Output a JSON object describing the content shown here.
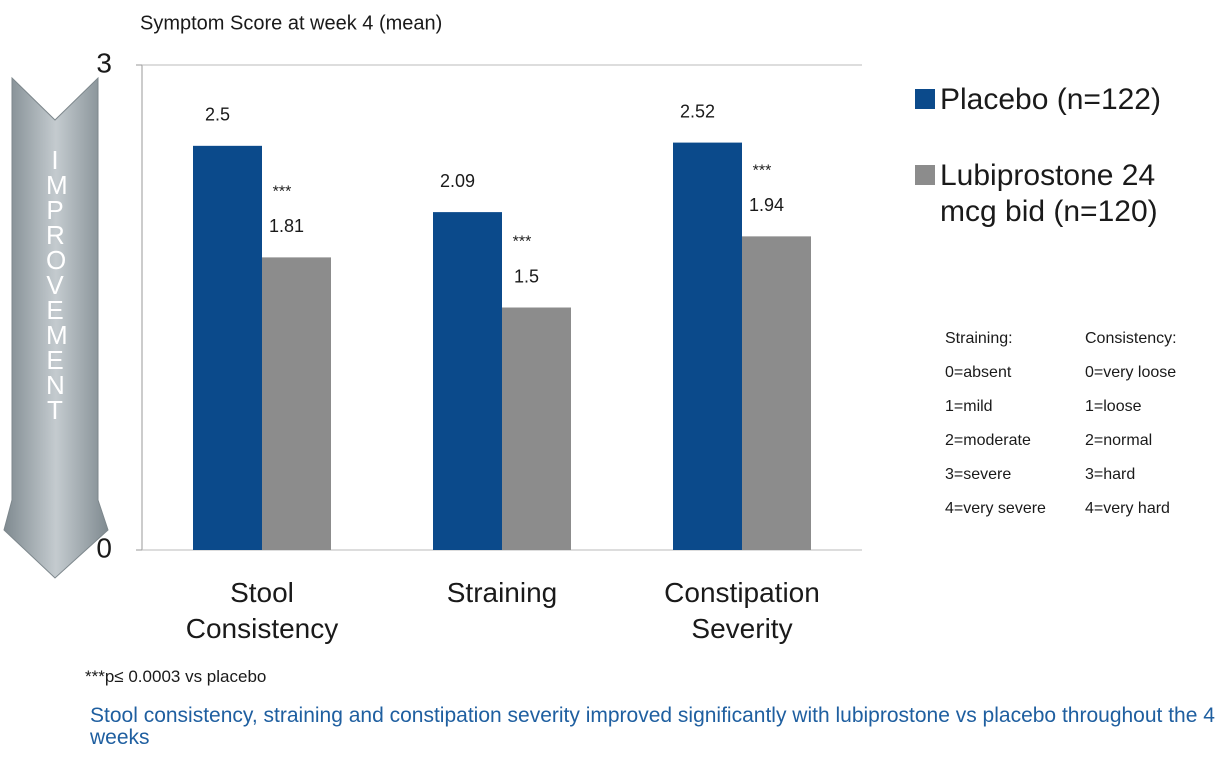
{
  "chart_data": {
    "type": "bar",
    "title": "Symptom Score at week 4 (mean)",
    "arrow_label": "IMPROVEMENT",
    "categories": [
      "Stool Consistency",
      "Straining",
      "Constipation Severity"
    ],
    "series": [
      {
        "name": "Placebo (n=122)",
        "color": "#0b4a8b",
        "values": [
          2.5,
          2.09,
          2.52
        ]
      },
      {
        "name": "Lubiprostone 24 mcg bid (n=120)",
        "color": "#8c8c8c",
        "values": [
          1.81,
          1.5,
          1.94
        ],
        "annotations": [
          "***",
          "***",
          "***"
        ]
      }
    ],
    "ylim": [
      0,
      3
    ],
    "yticks": [
      0,
      3
    ],
    "grid": true,
    "footnote": "***p≤ 0.0003 vs placebo",
    "caption": "Stool consistency, straining and constipation severity improved significantly with lubiprostone vs placebo throughout the 4 weeks",
    "key": [
      {
        "heading": "Straining:",
        "items": [
          "0=absent",
          "1=mild",
          "2=moderate",
          "3=severe",
          "4=very severe"
        ]
      },
      {
        "heading": "Consistency:",
        "items": [
          "0=very loose",
          "1=loose",
          "2=normal",
          "3=hard",
          "4=very hard"
        ]
      }
    ]
  }
}
